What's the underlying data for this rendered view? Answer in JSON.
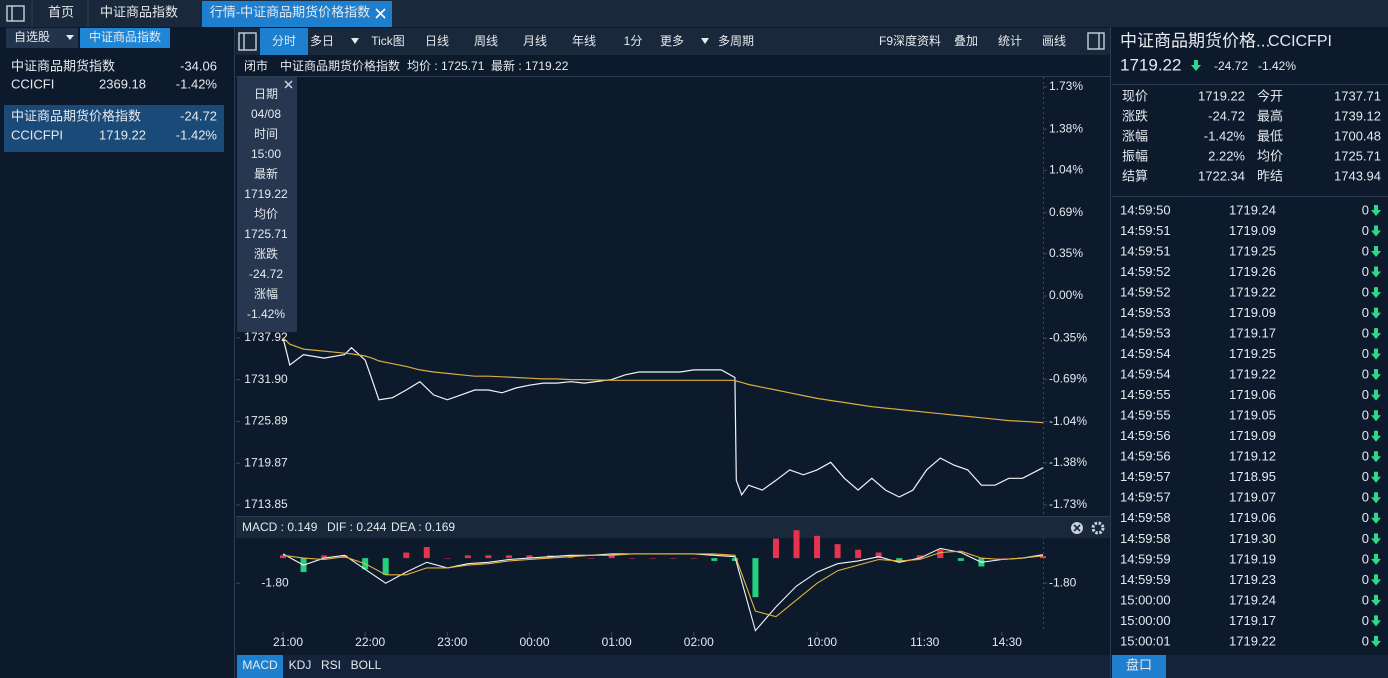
{
  "tabs": [
    "首页",
    "中证商品指数",
    "行情-中证商品期货价格指数"
  ],
  "sidebar": {
    "selectors": [
      "自选股",
      "中证商品指数"
    ],
    "items": [
      {
        "name": "中证商品期货指数",
        "change": "-34.06",
        "code": "CCICFI",
        "price": "2369.18",
        "pct": "-1.42%"
      },
      {
        "name": "中证商品期货价格指数",
        "change": "-24.72",
        "code": "CCICFPI",
        "price": "1719.22",
        "pct": "-1.42%"
      }
    ]
  },
  "toolbar": {
    "periods": [
      "分时",
      "多日",
      "Tick图",
      "日线",
      "周线",
      "月线",
      "年线",
      "1分",
      "更多",
      "多周期"
    ],
    "tools": [
      "F9深度资料",
      "叠加",
      "统计",
      "画线"
    ]
  },
  "info_bar": {
    "status": "闭市",
    "name": "中证商品期货价格指数",
    "average": "均价 : 1725.71",
    "latest": "最新 : 1719.22"
  },
  "tooltip": [
    {
      "label": "日期",
      "value": "04/08"
    },
    {
      "label": "时间",
      "value": "15:00"
    },
    {
      "label": "最新",
      "value": "1719.22"
    },
    {
      "label": "均价",
      "value": "1725.71"
    },
    {
      "label": "涨跌",
      "value": "-24.72"
    },
    {
      "label": "涨幅",
      "value": "-1.42%"
    }
  ],
  "chart_data": [
    {
      "type": "line",
      "x": [
        0,
        5,
        15,
        30,
        45,
        50,
        60,
        65,
        70,
        80,
        90,
        100,
        110,
        120,
        130,
        140,
        150,
        160,
        170,
        180,
        190,
        200,
        210,
        220,
        240,
        250,
        260,
        270,
        290,
        300,
        310,
        320,
        330,
        331,
        335,
        340,
        350,
        360,
        370,
        380,
        390,
        400,
        410,
        420,
        430,
        440,
        450,
        460,
        470,
        480,
        490,
        500,
        510,
        520,
        530,
        540,
        555
      ],
      "xlim": [
        0,
        555
      ],
      "xticks": [
        {
          "value": 0,
          "label": "21:00"
        },
        {
          "value": 60,
          "label": "22:00"
        },
        {
          "value": 120,
          "label": "23:00"
        },
        {
          "value": 180,
          "label": "00:00"
        },
        {
          "value": 240,
          "label": "01:00"
        },
        {
          "value": 300,
          "label": "02:00"
        },
        {
          "value": 390,
          "label": "10:00"
        },
        {
          "value": 465,
          "label": "11:30"
        },
        {
          "value": 525,
          "label": "14:30"
        }
      ],
      "ylim": [
        1713.85,
        1774.03
      ],
      "yticks": [
        1737.92,
        {
          "value": 1731.9,
          "label": "1731.90"
        },
        1725.89,
        1719.87,
        1713.85
      ],
      "y2lim": [
        -1.73,
        1.73
      ],
      "y2ticks": [
        {
          "value": 1.73,
          "label": "1.73%"
        },
        {
          "value": 1.38,
          "label": "1.38%"
        },
        {
          "value": 1.04,
          "label": "1.04%"
        },
        {
          "value": 0.69,
          "label": "0.69%"
        },
        {
          "value": 0.35,
          "label": "0.35%"
        },
        {
          "value": 0,
          "label": "0.00%"
        },
        {
          "value": -0.35,
          "label": "-0.35%"
        },
        {
          "value": -0.69,
          "label": "-0.69%"
        },
        {
          "value": -1.04,
          "label": "-1.04%"
        },
        {
          "value": -1.38,
          "label": "-1.38%"
        },
        {
          "value": -1.73,
          "label": "-1.73%"
        }
      ],
      "series": [
        {
          "color": "#f2f4f7",
          "values": [
            1737.92,
            1734.0,
            1735.5,
            1735.0,
            1735.5,
            1736.5,
            1734.7,
            1731.9,
            1729.0,
            1729.3,
            1730.4,
            1731.6,
            1729.7,
            1729.0,
            1729.7,
            1730.4,
            1730.4,
            1730.0,
            1730.7,
            1731.1,
            1731.4,
            1731.4,
            1731.6,
            1731.4,
            1731.9,
            1732.6,
            1733.0,
            1733.0,
            1733.0,
            1733.3,
            1733.3,
            1733.3,
            1732.2,
            1717.4,
            1715.3,
            1716.7,
            1716.0,
            1717.4,
            1718.9,
            1718.2,
            1718.9,
            1720.0,
            1717.7,
            1716.0,
            1717.7,
            1716.0,
            1715.0,
            1716.0,
            1718.9,
            1720.6,
            1719.6,
            1718.9,
            1716.7,
            1716.7,
            1717.7,
            1717.7,
            1719.22
          ]
        },
        {
          "color": "#d9ad3c",
          "values": [
            1737.92,
            1737.0,
            1736.3,
            1736.0,
            1735.7,
            1735.6,
            1735.3,
            1735.0,
            1734.6,
            1734.2,
            1733.8,
            1733.3,
            1733.0,
            1732.8,
            1732.6,
            1732.4,
            1732.4,
            1732.3,
            1732.2,
            1732.1,
            1732.0,
            1732.0,
            1731.9,
            1731.9,
            1731.8,
            1731.8,
            1731.8,
            1731.8,
            1731.8,
            1731.8,
            1731.8,
            1731.8,
            1731.8,
            1731.7,
            1731.5,
            1731.2,
            1730.8,
            1730.4,
            1730.0,
            1729.6,
            1729.2,
            1728.9,
            1728.6,
            1728.3,
            1728.0,
            1727.8,
            1727.6,
            1727.4,
            1727.2,
            1727.0,
            1726.8,
            1726.6,
            1726.4,
            1726.2,
            1726.0,
            1725.9,
            1725.71
          ]
        }
      ]
    },
    {
      "type": "macd",
      "x": [
        0,
        15,
        30,
        45,
        60,
        75,
        90,
        105,
        120,
        135,
        150,
        165,
        180,
        195,
        210,
        225,
        240,
        255,
        270,
        285,
        300,
        315,
        330,
        345,
        360,
        375,
        390,
        405,
        420,
        435,
        450,
        465,
        480,
        495,
        510,
        525,
        540,
        555
      ],
      "xlim": [
        0,
        555
      ],
      "ylim": [
        -5.3,
        1.3
      ],
      "yticks": [
        {
          "value": -1.8,
          "label": "-1.80"
        }
      ],
      "y2ticks": [
        {
          "value": -1.8,
          "label": "-1.80"
        }
      ],
      "legend": [
        "MACD : 0.149",
        "DIF : 0.244",
        "DEA : 0.169"
      ],
      "series": [
        {
          "name": "MACD",
          "color": "#e24ce0",
          "up_color": "#e8334f",
          "down_color": "#22d07e",
          "values": [
            0.2,
            -1.0,
            0.2,
            0.2,
            -0.8,
            -1.2,
            0.4,
            0.8,
            0,
            0.2,
            0.2,
            0.2,
            0.2,
            0.2,
            0.2,
            0,
            0.2,
            0,
            0,
            0,
            0,
            -0.2,
            -0.2,
            -2.8,
            1.4,
            2.0,
            1.6,
            1.0,
            0.6,
            0.4,
            -0.2,
            0.2,
            0.6,
            -0.2,
            -0.6,
            0,
            0,
            0.149
          ]
        },
        {
          "name": "DIF",
          "color": "#f2f4f7",
          "values": [
            0.3,
            -0.5,
            0,
            0.2,
            -0.8,
            -1.8,
            -1.0,
            -0.3,
            -0.7,
            -0.4,
            -0.3,
            -0.1,
            0,
            0.1,
            0.2,
            0.2,
            0.3,
            0.3,
            0.3,
            0.3,
            0.3,
            0.2,
            0.1,
            -5.2,
            -3.5,
            -2.0,
            -1.0,
            -0.4,
            -0.2,
            0.1,
            -0.3,
            0.0,
            0.7,
            0.4,
            -0.3,
            -0.1,
            0.0,
            0.244
          ]
        },
        {
          "name": "DEA",
          "color": "#e3b33c",
          "values": [
            0.2,
            0,
            -0.1,
            0.1,
            -0.4,
            -1.2,
            -1.2,
            -0.7,
            -0.7,
            -0.5,
            -0.4,
            -0.2,
            -0.1,
            0,
            0.1,
            0.2,
            0.2,
            0.3,
            0.3,
            0.3,
            0.3,
            0.3,
            0.2,
            -3.8,
            -4.2,
            -3.0,
            -1.8,
            -0.9,
            -0.5,
            -0.1,
            -0.2,
            -0.1,
            0.4,
            0.5,
            0.0,
            -0.1,
            0.0,
            0.169
          ]
        }
      ]
    }
  ],
  "indicator_tabs": [
    "MACD",
    "KDJ",
    "RSI",
    "BOLL"
  ],
  "quote": {
    "name": "中证商品期货价格...",
    "code": "CCICFPI",
    "price": "1719.22",
    "change": "-24.72",
    "pct": "-1.42%",
    "fields": [
      [
        "现价",
        "1719.22",
        "今开",
        "1737.71"
      ],
      [
        "涨跌",
        "-24.72",
        "最高",
        "1739.12"
      ],
      [
        "涨幅",
        "-1.42%",
        "最低",
        "1700.48"
      ],
      [
        "振幅",
        "2.22%",
        "均价",
        "1725.71"
      ],
      [
        "结算",
        "1722.34",
        "昨结",
        "1743.94"
      ]
    ]
  },
  "trades": [
    {
      "time": "14:59:50",
      "price": "1719.24",
      "volume": "0"
    },
    {
      "time": "14:59:51",
      "price": "1719.09",
      "volume": "0"
    },
    {
      "time": "14:59:51",
      "price": "1719.25",
      "volume": "0"
    },
    {
      "time": "14:59:52",
      "price": "1719.26",
      "volume": "0"
    },
    {
      "time": "14:59:52",
      "price": "1719.22",
      "volume": "0"
    },
    {
      "time": "14:59:53",
      "price": "1719.09",
      "volume": "0"
    },
    {
      "time": "14:59:53",
      "price": "1719.17",
      "volume": "0"
    },
    {
      "time": "14:59:54",
      "price": "1719.25",
      "volume": "0"
    },
    {
      "time": "14:59:54",
      "price": "1719.22",
      "volume": "0"
    },
    {
      "time": "14:59:55",
      "price": "1719.06",
      "volume": "0"
    },
    {
      "time": "14:59:55",
      "price": "1719.05",
      "volume": "0"
    },
    {
      "time": "14:59:56",
      "price": "1719.09",
      "volume": "0"
    },
    {
      "time": "14:59:56",
      "price": "1719.12",
      "volume": "0"
    },
    {
      "time": "14:59:57",
      "price": "1718.95",
      "volume": "0"
    },
    {
      "time": "14:59:57",
      "price": "1719.07",
      "volume": "0"
    },
    {
      "time": "14:59:58",
      "price": "1719.06",
      "volume": "0"
    },
    {
      "time": "14:59:58",
      "price": "1719.30",
      "volume": "0"
    },
    {
      "time": "14:59:59",
      "price": "1719.19",
      "volume": "0"
    },
    {
      "time": "14:59:59",
      "price": "1719.23",
      "volume": "0"
    },
    {
      "time": "15:00:00",
      "price": "1719.24",
      "volume": "0"
    },
    {
      "time": "15:00:00",
      "price": "1719.17",
      "volume": "0"
    },
    {
      "time": "15:00:01",
      "price": "1719.22",
      "volume": "0"
    }
  ],
  "footer_tab": "盘口"
}
